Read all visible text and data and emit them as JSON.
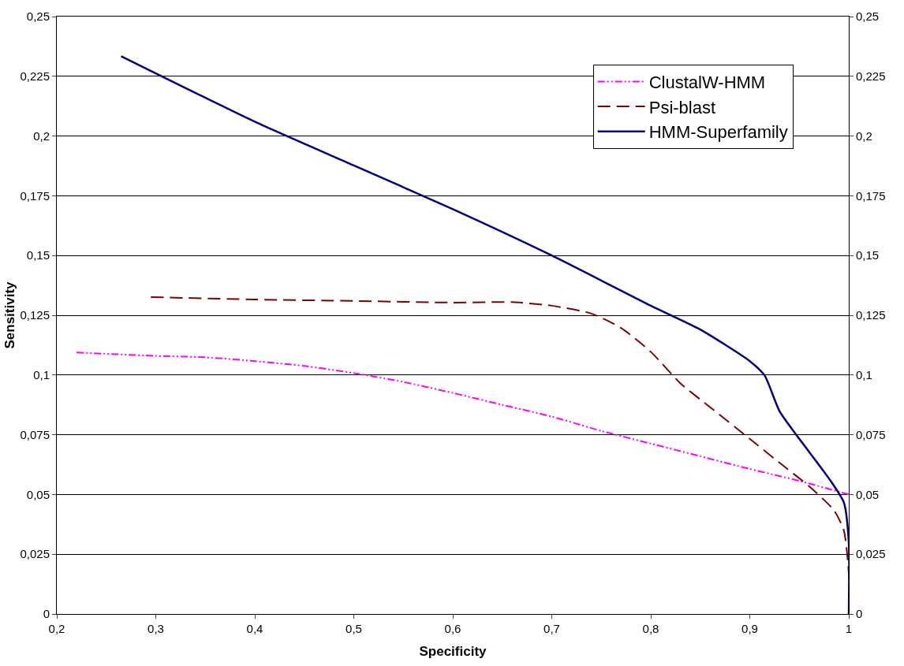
{
  "chart_data": {
    "type": "line",
    "xlabel": "Specificity",
    "ylabel": "Sensitivity",
    "xlim": [
      0.2,
      1
    ],
    "ylim": [
      0,
      0.25
    ],
    "y2lim": [
      0,
      0.25
    ],
    "xticks": [
      {
        "value": 0.2,
        "label": "0,2"
      },
      {
        "value": 0.3,
        "label": "0,3"
      },
      {
        "value": 0.4,
        "label": "0,4"
      },
      {
        "value": 0.5,
        "label": "0,5"
      },
      {
        "value": 0.6,
        "label": "0,6"
      },
      {
        "value": 0.7,
        "label": "0,7"
      },
      {
        "value": 0.8,
        "label": "0,8"
      },
      {
        "value": 0.9,
        "label": "0,9"
      },
      1
    ],
    "yticks": [
      0,
      {
        "value": 0.025,
        "label": "0,025"
      },
      {
        "value": 0.05,
        "label": "0,05"
      },
      {
        "value": 0.075,
        "label": "0,075"
      },
      {
        "value": 0.1,
        "label": "0,1"
      },
      {
        "value": 0.125,
        "label": "0,125"
      },
      {
        "value": 0.15,
        "label": "0,15"
      },
      {
        "value": 0.175,
        "label": "0,175"
      },
      {
        "value": 0.2,
        "label": "0,2"
      },
      {
        "value": 0.225,
        "label": "0,225"
      },
      {
        "value": 0.25,
        "label": "0,25"
      }
    ],
    "y2ticks": [
      0,
      {
        "value": 0.025,
        "label": "0,025"
      },
      {
        "value": 0.05,
        "label": "0,05"
      },
      {
        "value": 0.075,
        "label": "0,075"
      },
      {
        "value": 0.1,
        "label": "0,1"
      },
      {
        "value": 0.125,
        "label": "0,125"
      },
      {
        "value": 0.15,
        "label": "0,15"
      },
      {
        "value": 0.175,
        "label": "0,175"
      },
      {
        "value": 0.2,
        "label": "0,2"
      },
      {
        "value": 0.225,
        "label": "0,225"
      },
      {
        "value": 0.25,
        "label": "0,25"
      }
    ],
    "grid": "y",
    "legend": "top right",
    "marker": "none",
    "series": [
      {
        "name": "ClustalW-HMM",
        "color": "#ff00ff",
        "line_style": "dotted",
        "x": [
          0.22,
          0.3,
          0.35,
          0.4,
          0.45,
          0.5,
          0.55,
          0.6,
          0.65,
          0.7,
          0.75,
          0.8,
          0.85,
          0.9,
          0.95,
          1.0
        ],
        "values": [
          0.1094,
          0.108,
          0.1074,
          0.1058,
          0.1038,
          0.1008,
          0.0971,
          0.0925,
          0.0875,
          0.0826,
          0.0766,
          0.0713,
          0.066,
          0.0607,
          0.0557,
          0.05
        ]
      },
      {
        "name": "Psi-blast",
        "color": "#800000",
        "line_style": "dashed",
        "x": [
          0.295,
          0.4,
          0.5,
          0.6,
          0.66,
          0.7,
          0.74,
          0.77,
          0.8,
          0.83,
          0.86,
          0.9,
          0.93,
          0.96,
          0.985,
          0.995,
          1.0,
          1.0
        ],
        "values": [
          0.1326,
          0.1316,
          0.131,
          0.1303,
          0.1305,
          0.129,
          0.1257,
          0.1197,
          0.1097,
          0.0965,
          0.0865,
          0.0733,
          0.0633,
          0.0534,
          0.0434,
          0.035,
          0.017,
          0
        ]
      },
      {
        "name": "HMM-Superfamily",
        "color": "#000080",
        "line_style": "solid",
        "x": [
          0.265,
          0.4,
          0.5,
          0.6,
          0.7,
          0.8,
          0.85,
          0.9,
          0.915,
          0.93,
          0.95,
          0.98,
          0.995,
          1.0,
          1.0
        ],
        "values": [
          0.2334,
          0.206,
          0.1877,
          0.1694,
          0.15,
          0.129,
          0.119,
          0.1058,
          0.0998,
          0.0849,
          0.0733,
          0.0567,
          0.0467,
          0.03,
          0
        ]
      }
    ]
  }
}
